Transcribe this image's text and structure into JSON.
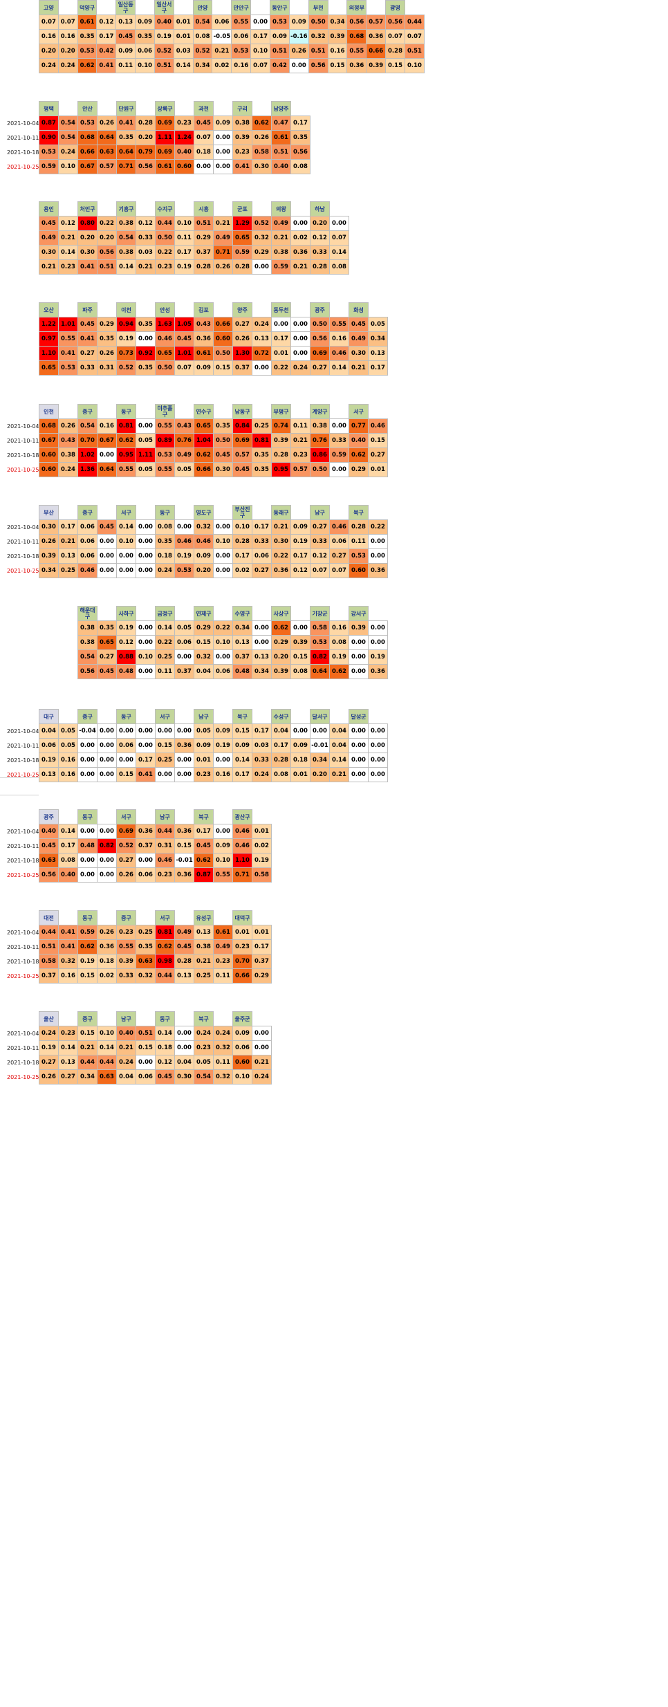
{
  "dates": [
    "2021-10-04",
    "2021-10-11",
    "2021-10-18",
    "2021-10-25"
  ],
  "legend_scale_colors": [
    "#ffffff",
    "#fed7a5",
    "#fbbf83",
    "#f9945f",
    "#f36a1b",
    "#ff0000"
  ],
  "blocks": [
    {
      "id": "gyeonggi1",
      "show_dates": false,
      "headers": [
        "고양",
        "",
        "덕양구",
        "",
        "일산동구",
        "",
        "일산서구",
        "",
        "안양",
        "",
        "만안구",
        "",
        "동안구",
        "",
        "부천",
        "",
        "의정부",
        "",
        "광명",
        ""
      ],
      "rows": [
        [
          "0.07",
          "0.07",
          "0.61",
          "0.12",
          "0.13",
          "0.09",
          "0.40",
          "0.01",
          "0.54",
          "0.06",
          "0.55",
          "0.00",
          "0.53",
          "0.09",
          "0.50",
          "0.34",
          "0.56",
          "0.57",
          "0.56",
          "0.44"
        ],
        [
          "0.16",
          "0.16",
          "0.35",
          "0.17",
          "0.45",
          "0.35",
          "0.19",
          "0.01",
          "0.08",
          "-0.05",
          "0.06",
          "0.17",
          "0.09",
          "-0.16",
          "0.32",
          "0.39",
          "0.68",
          "0.36",
          "0.07",
          "0.07"
        ],
        [
          "0.20",
          "0.20",
          "0.53",
          "0.42",
          "0.09",
          "0.06",
          "0.52",
          "0.03",
          "0.52",
          "0.21",
          "0.53",
          "0.10",
          "0.51",
          "0.26",
          "0.51",
          "0.16",
          "0.55",
          "0.66",
          "0.28",
          "0.51"
        ],
        [
          "0.24",
          "0.24",
          "0.62",
          "0.41",
          "0.11",
          "0.10",
          "0.51",
          "0.14",
          "0.34",
          "0.02",
          "0.16",
          "0.07",
          "0.42",
          "0.00",
          "0.56",
          "0.15",
          "0.36",
          "0.39",
          "0.15",
          "0.10"
        ]
      ]
    },
    {
      "id": "gyeonggi2",
      "show_dates": true,
      "headers": [
        "평택",
        "",
        "안산",
        "",
        "단원구",
        "",
        "상록구",
        "",
        "과천",
        "",
        "구리",
        "",
        "남양주",
        ""
      ],
      "rows": [
        [
          "0.87",
          "0.54",
          "0.53",
          "0.26",
          "0.41",
          "0.28",
          "0.69",
          "0.23",
          "0.45",
          "0.09",
          "0.38",
          "0.62",
          "0.47",
          "0.17"
        ],
        [
          "0.90",
          "0.54",
          "0.68",
          "0.64",
          "0.35",
          "0.20",
          "1.11",
          "1.24",
          "0.07",
          "0.00",
          "0.39",
          "0.26",
          "0.61",
          "0.35"
        ],
        [
          "0.53",
          "0.24",
          "0.66",
          "0.63",
          "0.64",
          "0.79",
          "0.69",
          "0.40",
          "0.18",
          "0.00",
          "0.23",
          "0.58",
          "0.51",
          "0.56"
        ],
        [
          "0.59",
          "0.10",
          "0.67",
          "0.57",
          "0.71",
          "0.56",
          "0.61",
          "0.60",
          "0.00",
          "0.00",
          "0.41",
          "0.30",
          "0.40",
          "0.08"
        ]
      ]
    },
    {
      "id": "gyeonggi3",
      "show_dates": false,
      "headers": [
        "용인",
        "",
        "처인구",
        "",
        "기흥구",
        "",
        "수지구",
        "",
        "시흥",
        "",
        "군포",
        "",
        "의왕",
        "",
        "하남",
        ""
      ],
      "rows": [
        [
          "0.45",
          "0.12",
          "0.80",
          "0.22",
          "0.38",
          "0.12",
          "0.44",
          "0.10",
          "0.51",
          "0.21",
          "1.29",
          "0.52",
          "0.49",
          "0.00",
          "0.20",
          "0.00"
        ],
        [
          "0.49",
          "0.21",
          "0.20",
          "0.20",
          "0.54",
          "0.33",
          "0.50",
          "0.11",
          "0.29",
          "0.49",
          "0.65",
          "0.32",
          "0.21",
          "0.02",
          "0.12",
          "0.07"
        ],
        [
          "0.30",
          "0.14",
          "0.30",
          "0.56",
          "0.38",
          "0.03",
          "0.22",
          "0.17",
          "0.37",
          "0.71",
          "0.59",
          "0.29",
          "0.38",
          "0.36",
          "0.33",
          "0.14"
        ],
        [
          "0.21",
          "0.23",
          "0.41",
          "0.51",
          "0.14",
          "0.21",
          "0.23",
          "0.19",
          "0.28",
          "0.26",
          "0.28",
          "0.00",
          "0.59",
          "0.21",
          "0.28",
          "0.08"
        ]
      ]
    },
    {
      "id": "gyeonggi4",
      "show_dates": false,
      "headers": [
        "오산",
        "",
        "파주",
        "",
        "이천",
        "",
        "안성",
        "",
        "김포",
        "",
        "양주",
        "",
        "동두천",
        "",
        "광주",
        "",
        "화성",
        ""
      ],
      "rows": [
        [
          "1.22",
          "1.01",
          "0.45",
          "0.29",
          "0.94",
          "0.35",
          "1.63",
          "1.05",
          "0.43",
          "0.66",
          "0.27",
          "0.24",
          "0.00",
          "0.00",
          "0.50",
          "0.55",
          "0.45",
          "0.05"
        ],
        [
          "0.97",
          "0.55",
          "0.41",
          "0.35",
          "0.19",
          "0.00",
          "0.46",
          "0.45",
          "0.36",
          "0.60",
          "0.26",
          "0.13",
          "0.17",
          "0.00",
          "0.56",
          "0.16",
          "0.49",
          "0.34"
        ],
        [
          "1.10",
          "0.41",
          "0.27",
          "0.26",
          "0.73",
          "0.92",
          "0.65",
          "1.01",
          "0.61",
          "0.50",
          "1.30",
          "0.72",
          "0.01",
          "0.00",
          "0.69",
          "0.46",
          "0.30",
          "0.13"
        ],
        [
          "0.65",
          "0.53",
          "0.33",
          "0.31",
          "0.52",
          "0.35",
          "0.50",
          "0.07",
          "0.09",
          "0.15",
          "0.37",
          "0.00",
          "0.22",
          "0.24",
          "0.27",
          "0.14",
          "0.21",
          "0.17"
        ]
      ]
    },
    {
      "id": "incheon",
      "show_dates": true,
      "headers": [
        "인천",
        "",
        "중구",
        "",
        "동구",
        "",
        "미추홀구",
        "",
        "연수구",
        "",
        "남동구",
        "",
        "부평구",
        "",
        "계양구",
        "",
        "서구",
        ""
      ],
      "rows": [
        [
          "0.68",
          "0.26",
          "0.54",
          "0.16",
          "0.81",
          "0.00",
          "0.55",
          "0.43",
          "0.65",
          "0.35",
          "0.84",
          "0.25",
          "0.74",
          "0.11",
          "0.38",
          "0.00",
          "0.77",
          "0.46"
        ],
        [
          "0.67",
          "0.43",
          "0.70",
          "0.67",
          "0.62",
          "0.05",
          "0.89",
          "0.76",
          "1.04",
          "0.50",
          "0.69",
          "0.81",
          "0.39",
          "0.21",
          "0.76",
          "0.33",
          "0.40",
          "0.15"
        ],
        [
          "0.60",
          "0.38",
          "1.02",
          "0.00",
          "0.95",
          "1.11",
          "0.53",
          "0.49",
          "0.62",
          "0.45",
          "0.57",
          "0.35",
          "0.28",
          "0.23",
          "0.86",
          "0.59",
          "0.62",
          "0.27"
        ],
        [
          "0.60",
          "0.24",
          "1.36",
          "0.64",
          "0.55",
          "0.05",
          "0.55",
          "0.05",
          "0.66",
          "0.30",
          "0.45",
          "0.35",
          "0.95",
          "0.57",
          "0.50",
          "0.00",
          "0.29",
          "0.01"
        ]
      ]
    },
    {
      "id": "busan1",
      "show_dates": true,
      "headers": [
        "부산",
        "",
        "중구",
        "",
        "서구",
        "",
        "동구",
        "",
        "영도구",
        "",
        "부산진구",
        "",
        "동래구",
        "",
        "남구",
        "",
        "북구",
        ""
      ],
      "rows": [
        [
          "0.30",
          "0.17",
          "0.06",
          "0.45",
          "0.14",
          "0.00",
          "0.08",
          "0.00",
          "0.32",
          "0.00",
          "0.10",
          "0.17",
          "0.21",
          "0.09",
          "0.27",
          "0.46",
          "0.28",
          "0.22"
        ],
        [
          "0.26",
          "0.21",
          "0.06",
          "0.00",
          "0.10",
          "0.00",
          "0.35",
          "0.46",
          "0.46",
          "0.10",
          "0.28",
          "0.33",
          "0.30",
          "0.19",
          "0.33",
          "0.06",
          "0.11",
          "0.00"
        ],
        [
          "0.39",
          "0.13",
          "0.06",
          "0.00",
          "0.00",
          "0.00",
          "0.18",
          "0.19",
          "0.09",
          "0.00",
          "0.17",
          "0.06",
          "0.22",
          "0.17",
          "0.12",
          "0.27",
          "0.53",
          "0.00"
        ],
        [
          "0.34",
          "0.25",
          "0.46",
          "0.00",
          "0.00",
          "0.00",
          "0.24",
          "0.53",
          "0.20",
          "0.00",
          "0.02",
          "0.27",
          "0.36",
          "0.12",
          "0.07",
          "0.07",
          "0.60",
          "0.36"
        ]
      ]
    },
    {
      "id": "busan2",
      "show_dates": false,
      "headers": [
        "해운대구",
        "",
        "사하구",
        "",
        "금정구",
        "",
        "연제구",
        "",
        "수영구",
        "",
        "사상구",
        "",
        "기장군",
        "",
        "강서구",
        ""
      ],
      "rows": [
        [
          "0.38",
          "0.35",
          "0.19",
          "0.00",
          "0.14",
          "0.05",
          "0.29",
          "0.22",
          "0.34",
          "0.00",
          "0.62",
          "0.00",
          "0.58",
          "0.16",
          "0.39",
          "0.00"
        ],
        [
          "0.38",
          "0.65",
          "0.12",
          "0.00",
          "0.22",
          "0.06",
          "0.15",
          "0.10",
          "0.13",
          "0.00",
          "0.29",
          "0.39",
          "0.53",
          "0.08",
          "0.00",
          "0.00"
        ],
        [
          "0.54",
          "0.27",
          "0.88",
          "0.10",
          "0.25",
          "0.00",
          "0.32",
          "0.00",
          "0.37",
          "0.13",
          "0.20",
          "0.15",
          "0.82",
          "0.19",
          "0.00",
          "0.19"
        ],
        [
          "0.56",
          "0.45",
          "0.48",
          "0.00",
          "0.11",
          "0.37",
          "0.04",
          "0.06",
          "0.48",
          "0.34",
          "0.39",
          "0.08",
          "0.64",
          "0.62",
          "0.00",
          "0.36"
        ]
      ]
    },
    {
      "id": "daegu",
      "show_dates": true,
      "headers": [
        "대구",
        "",
        "중구",
        "",
        "동구",
        "",
        "서구",
        "",
        "남구",
        "",
        "북구",
        "",
        "수성구",
        "",
        "달서구",
        "",
        "달성군",
        ""
      ],
      "rows": [
        [
          "0.04",
          "0.05",
          "-0.04",
          "0.00",
          "0.00",
          "0.00",
          "0.00",
          "0.00",
          "0.05",
          "0.09",
          "0.15",
          "0.17",
          "0.04",
          "0.00",
          "0.00",
          "0.04",
          "0.00",
          "0.00"
        ],
        [
          "0.06",
          "0.05",
          "0.00",
          "0.00",
          "0.06",
          "0.00",
          "0.15",
          "0.36",
          "0.09",
          "0.19",
          "0.09",
          "0.03",
          "0.17",
          "0.09",
          "-0.01",
          "0.04",
          "0.00",
          "0.00"
        ],
        [
          "0.19",
          "0.16",
          "0.00",
          "0.00",
          "0.00",
          "0.17",
          "0.25",
          "0.00",
          "0.01",
          "0.00",
          "0.14",
          "0.33",
          "0.28",
          "0.18",
          "0.34",
          "0.14",
          "0.00",
          "0.00"
        ],
        [
          "0.13",
          "0.16",
          "0.00",
          "0.00",
          "0.15",
          "0.41",
          "0.00",
          "0.00",
          "0.23",
          "0.16",
          "0.17",
          "0.24",
          "0.08",
          "0.01",
          "0.20",
          "0.21",
          "0.00",
          "0.00"
        ]
      ]
    },
    {
      "id": "gwangju",
      "show_dates": true,
      "headers": [
        "광주",
        "",
        "동구",
        "",
        "서구",
        "",
        "남구",
        "",
        "북구",
        "",
        "광산구",
        ""
      ],
      "rows": [
        [
          "0.40",
          "0.14",
          "0.00",
          "0.00",
          "0.69",
          "0.36",
          "0.44",
          "0.36",
          "0.17",
          "0.00",
          "0.46",
          "0.01"
        ],
        [
          "0.45",
          "0.17",
          "0.48",
          "0.82",
          "0.52",
          "0.37",
          "0.31",
          "0.15",
          "0.45",
          "0.09",
          "0.46",
          "0.02"
        ],
        [
          "0.63",
          "0.08",
          "0.00",
          "0.00",
          "0.27",
          "0.00",
          "0.46",
          "-0.01",
          "0.62",
          "0.10",
          "1.10",
          "0.19"
        ],
        [
          "0.56",
          "0.40",
          "0.00",
          "0.00",
          "0.26",
          "0.06",
          "0.23",
          "0.36",
          "0.87",
          "0.55",
          "0.71",
          "0.58"
        ]
      ]
    },
    {
      "id": "daejeon",
      "show_dates": true,
      "headers": [
        "대전",
        "",
        "동구",
        "",
        "중구",
        "",
        "서구",
        "",
        "유성구",
        "",
        "대덕구",
        ""
      ],
      "rows": [
        [
          "0.44",
          "0.41",
          "0.59",
          "0.26",
          "0.23",
          "0.25",
          "0.81",
          "0.49",
          "0.13",
          "0.61",
          "0.01",
          "0.01"
        ],
        [
          "0.51",
          "0.41",
          "0.62",
          "0.36",
          "0.55",
          "0.35",
          "0.62",
          "0.45",
          "0.38",
          "0.49",
          "0.23",
          "0.17"
        ],
        [
          "0.58",
          "0.32",
          "0.19",
          "0.18",
          "0.39",
          "0.63",
          "0.98",
          "0.28",
          "0.21",
          "0.23",
          "0.70",
          "0.37"
        ],
        [
          "0.37",
          "0.16",
          "0.15",
          "0.02",
          "0.33",
          "0.32",
          "0.44",
          "0.13",
          "0.25",
          "0.11",
          "0.66",
          "0.29"
        ]
      ]
    },
    {
      "id": "ulsan",
      "show_dates": true,
      "headers": [
        "울산",
        "",
        "중구",
        "",
        "남구",
        "",
        "동구",
        "",
        "북구",
        "",
        "울주군",
        ""
      ],
      "rows": [
        [
          "0.24",
          "0.23",
          "0.15",
          "0.10",
          "0.40",
          "0.51",
          "0.14",
          "0.00",
          "0.24",
          "0.24",
          "0.09",
          "0.00"
        ],
        [
          "0.19",
          "0.14",
          "0.21",
          "0.14",
          "0.21",
          "0.15",
          "0.18",
          "0.00",
          "0.23",
          "0.32",
          "0.06",
          "0.00"
        ],
        [
          "0.27",
          "0.13",
          "0.44",
          "0.44",
          "0.24",
          "0.00",
          "0.12",
          "0.04",
          "0.05",
          "0.11",
          "0.60",
          "0.21"
        ],
        [
          "0.26",
          "0.27",
          "0.34",
          "0.63",
          "0.04",
          "0.06",
          "0.45",
          "0.30",
          "0.54",
          "0.32",
          "0.10",
          "0.24"
        ]
      ]
    }
  ]
}
